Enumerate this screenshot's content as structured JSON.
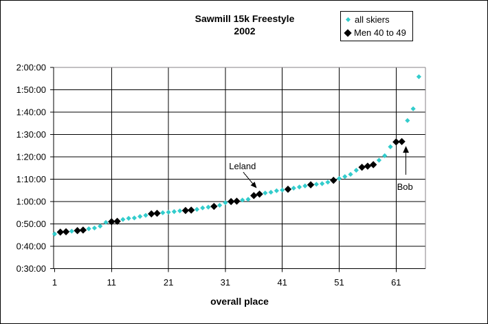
{
  "title": {
    "line1": "Sawmill 15k Freestyle",
    "line2": "2002"
  },
  "legend": {
    "items": [
      {
        "label": "all skiers",
        "marker": "small-cyan-diamond",
        "color": "#33CCCC"
      },
      {
        "label": "Men 40 to 49",
        "marker": "large-black-diamond",
        "color": "#000000"
      }
    ]
  },
  "chart_data": {
    "type": "scatter",
    "title": "Sawmill 15k Freestyle 2002",
    "xlabel": "overall place",
    "ylabel": "",
    "x_ticks": [
      1,
      11,
      21,
      31,
      41,
      51,
      61
    ],
    "y_ticks": [
      "2:00:00",
      "1:50:00",
      "1:40:00",
      "1:30:00",
      "1:20:00",
      "1:10:00",
      "1:00:00",
      "0:50:00",
      "0:40:00",
      "0:30:00"
    ],
    "xlim": [
      1,
      66
    ],
    "ylim": [
      "0:30:00",
      "2:00:00"
    ],
    "grid": "on",
    "legend_position": "top-right",
    "series": [
      {
        "name": "all skiers",
        "color": "#33CCCC",
        "marker": "diamond-small",
        "points": [
          [
            1,
            "0:45:30"
          ],
          [
            2,
            "0:46:20"
          ],
          [
            3,
            "0:46:30"
          ],
          [
            4,
            "0:46:45"
          ],
          [
            5,
            "0:47:00"
          ],
          [
            6,
            "0:47:15"
          ],
          [
            7,
            "0:47:50"
          ],
          [
            8,
            "0:48:10"
          ],
          [
            9,
            "0:49:00"
          ],
          [
            10,
            "0:50:40"
          ],
          [
            11,
            "0:51:00"
          ],
          [
            12,
            "0:51:10"
          ],
          [
            13,
            "0:52:00"
          ],
          [
            14,
            "0:52:30"
          ],
          [
            15,
            "0:52:40"
          ],
          [
            16,
            "0:53:20"
          ],
          [
            17,
            "0:53:50"
          ],
          [
            18,
            "0:54:30"
          ],
          [
            19,
            "0:54:45"
          ],
          [
            20,
            "0:55:00"
          ],
          [
            21,
            "0:55:15"
          ],
          [
            22,
            "0:55:30"
          ],
          [
            23,
            "0:55:50"
          ],
          [
            24,
            "0:56:00"
          ],
          [
            25,
            "0:56:10"
          ],
          [
            26,
            "0:56:30"
          ],
          [
            27,
            "0:57:10"
          ],
          [
            28,
            "0:57:30"
          ],
          [
            29,
            "0:57:50"
          ],
          [
            30,
            "0:58:20"
          ],
          [
            31,
            "0:59:30"
          ],
          [
            32,
            "1:00:00"
          ],
          [
            33,
            "1:00:10"
          ],
          [
            34,
            "1:00:40"
          ],
          [
            35,
            "1:01:00"
          ],
          [
            36,
            "1:02:40"
          ],
          [
            37,
            "1:03:20"
          ],
          [
            38,
            "1:03:50"
          ],
          [
            39,
            "1:04:10"
          ],
          [
            40,
            "1:04:50"
          ],
          [
            41,
            "1:05:10"
          ],
          [
            42,
            "1:05:30"
          ],
          [
            43,
            "1:06:00"
          ],
          [
            44,
            "1:06:30"
          ],
          [
            45,
            "1:07:00"
          ],
          [
            46,
            "1:07:30"
          ],
          [
            47,
            "1:07:45"
          ],
          [
            48,
            "1:08:00"
          ],
          [
            49,
            "1:08:40"
          ],
          [
            50,
            "1:09:30"
          ],
          [
            51,
            "1:10:20"
          ],
          [
            52,
            "1:11:10"
          ],
          [
            53,
            "1:12:10"
          ],
          [
            54,
            "1:14:00"
          ],
          [
            55,
            "1:15:20"
          ],
          [
            56,
            "1:15:50"
          ],
          [
            57,
            "1:16:30"
          ],
          [
            58,
            "1:18:30"
          ],
          [
            59,
            "1:20:30"
          ],
          [
            60,
            "1:24:30"
          ],
          [
            61,
            "1:26:40"
          ],
          [
            62,
            "1:26:50"
          ],
          [
            63,
            "1:36:15"
          ],
          [
            64,
            "1:41:30"
          ],
          [
            65,
            "1:55:50"
          ]
        ]
      },
      {
        "name": "Men 40 to 49",
        "color": "#000000",
        "marker": "diamond-large",
        "points": [
          [
            2,
            "0:46:20"
          ],
          [
            3,
            "0:46:30"
          ],
          [
            5,
            "0:47:00"
          ],
          [
            6,
            "0:47:15"
          ],
          [
            11,
            "0:51:00"
          ],
          [
            12,
            "0:51:10"
          ],
          [
            18,
            "0:54:30"
          ],
          [
            19,
            "0:54:45"
          ],
          [
            24,
            "0:56:00"
          ],
          [
            25,
            "0:56:10"
          ],
          [
            29,
            "0:57:50"
          ],
          [
            32,
            "1:00:00"
          ],
          [
            33,
            "1:00:10"
          ],
          [
            36,
            "1:02:40"
          ],
          [
            37,
            "1:03:20"
          ],
          [
            42,
            "1:05:30"
          ],
          [
            46,
            "1:07:30"
          ],
          [
            50,
            "1:09:30"
          ],
          [
            55,
            "1:15:20"
          ],
          [
            56,
            "1:15:50"
          ],
          [
            57,
            "1:16:30"
          ],
          [
            61,
            "1:26:40"
          ],
          [
            62,
            "1:26:50"
          ]
        ]
      }
    ],
    "annotations": [
      {
        "text": "Leland",
        "series": "Men 40 to 49",
        "place": 36,
        "time": "1:02:40"
      },
      {
        "text": "Bob",
        "series": "Men 40 to 49",
        "place": 62,
        "time": "1:26:50"
      }
    ]
  }
}
